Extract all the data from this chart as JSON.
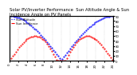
{
  "title": "Solar PV/Inverter Performance  Sun Altitude Angle & Sun Incidence Angle on PV Panels",
  "legend_labels": [
    "Sun Altitude",
    "Sun Incidence"
  ],
  "ylim": [
    0,
    90
  ],
  "xlim": [
    0,
    24
  ],
  "xticks": [
    0,
    2,
    4,
    6,
    8,
    10,
    12,
    14,
    16,
    18,
    20,
    22,
    24
  ],
  "yticks_right": [
    0,
    10,
    20,
    30,
    40,
    50,
    60,
    70,
    80,
    90
  ],
  "background_color": "#ffffff",
  "grid_color": "#b0b0b0",
  "title_fontsize": 3.8,
  "tick_fontsize": 2.8,
  "blue_color": "#0000ff",
  "red_color": "#ff0000"
}
